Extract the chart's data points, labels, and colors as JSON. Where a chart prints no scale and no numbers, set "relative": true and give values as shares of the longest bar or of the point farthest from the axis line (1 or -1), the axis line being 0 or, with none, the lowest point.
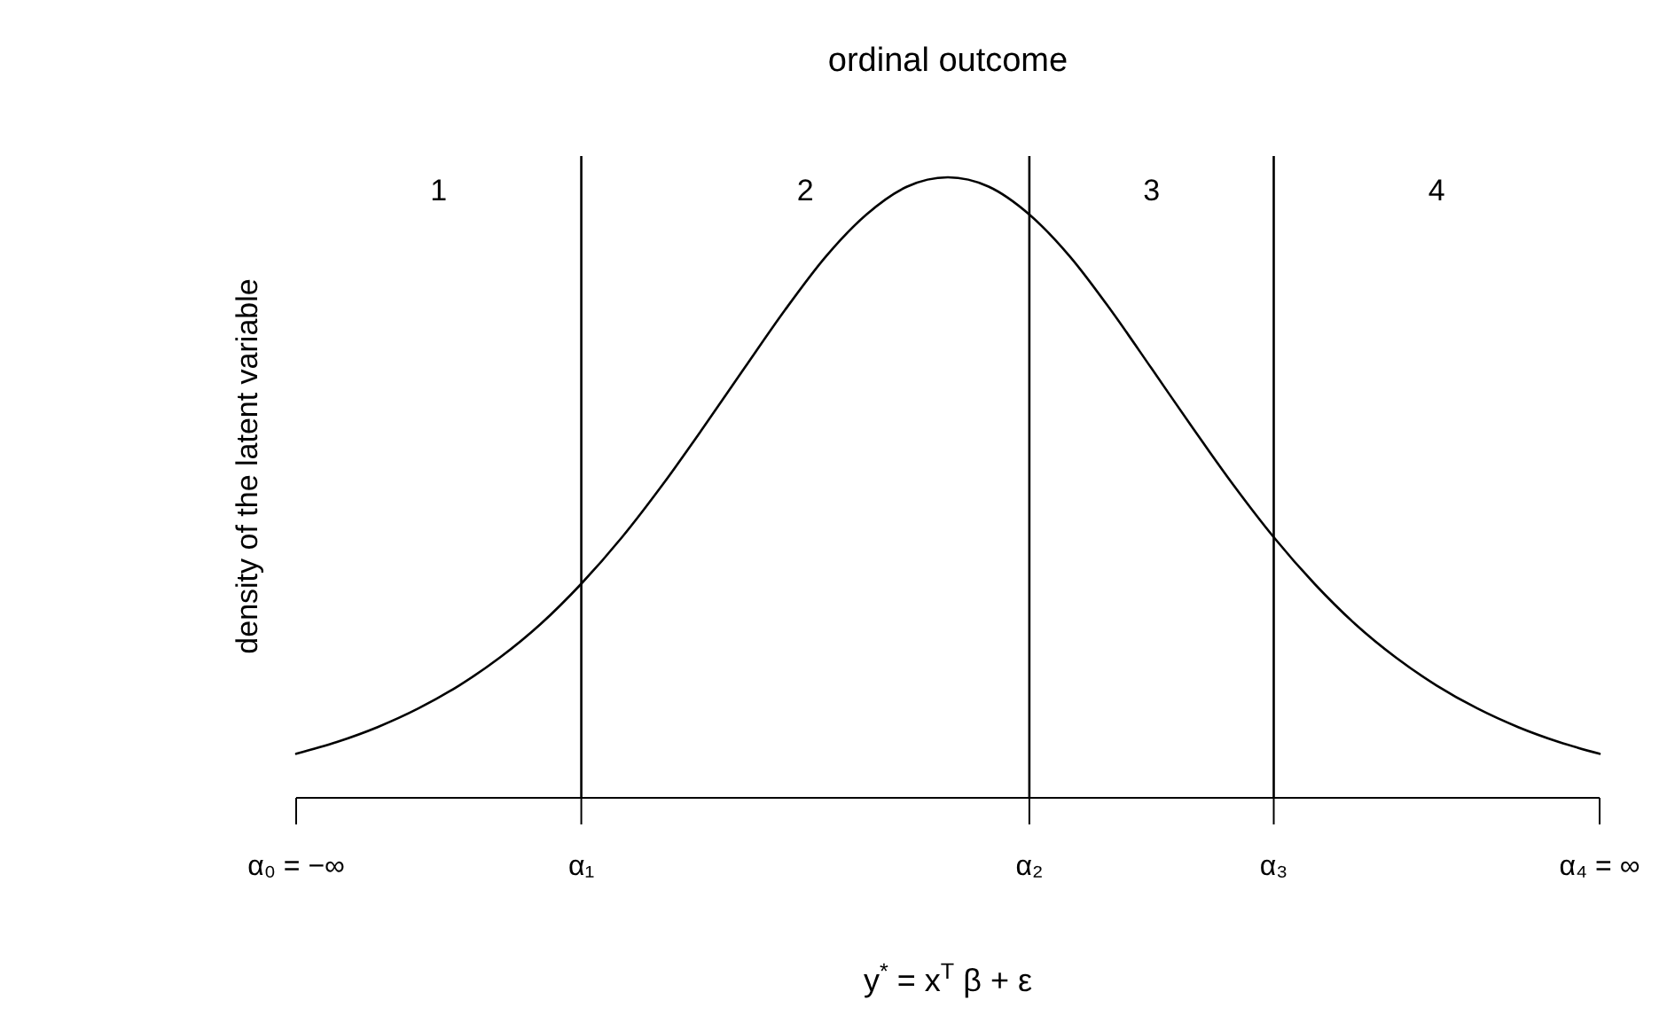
{
  "chart_data": {
    "type": "line",
    "title": "ordinal outcome",
    "xlabel": "y$^{*}$ = x$^{T}$ β + ε",
    "ylabel": "density of the latent variable",
    "relative": true,
    "tick_labels": "x",
    "categories": [
      "α₀ = −∞",
      null,
      null,
      null,
      null,
      null,
      null,
      "α₁",
      null,
      null,
      null,
      null,
      null,
      null,
      null,
      null,
      null,
      null,
      "α₂",
      null,
      null,
      null,
      null,
      null,
      "α₃",
      null,
      null,
      null,
      null,
      null,
      null,
      null,
      "α₄ = ∞"
    ],
    "series": [
      {
        "color": "#000000",
        "values": [
          0.071,
          0.09,
          0.114,
          0.144,
          0.181,
          0.226,
          0.28,
          0.345,
          0.42,
          0.505,
          0.597,
          0.692,
          0.786,
          0.872,
          0.94,
          0.985,
          1,
          0.985,
          0.94,
          0.872,
          0.786,
          0.692,
          0.597,
          0.505,
          0.42,
          0.345,
          0.28,
          0.226,
          0.181,
          0.144,
          0.114,
          0.09,
          0.071
        ]
      }
    ],
    "ref_lines": [
      {
        "axis": "x",
        "value": "α₁",
        "color": "#000000"
      },
      {
        "axis": "x",
        "value": "α₂",
        "color": "#000000"
      },
      {
        "axis": "x",
        "value": "α₃",
        "color": "#000000"
      }
    ],
    "annotations": [
      "1",
      "2",
      "3",
      "4"
    ]
  }
}
